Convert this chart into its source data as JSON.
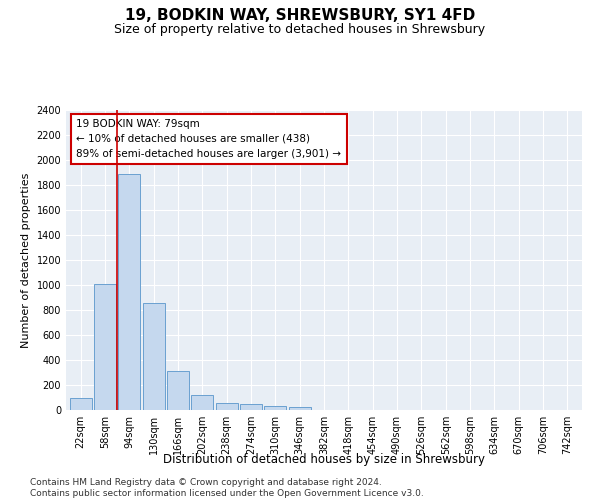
{
  "title1": "19, BODKIN WAY, SHREWSBURY, SY1 4FD",
  "title2": "Size of property relative to detached houses in Shrewsbury",
  "xlabel": "Distribution of detached houses by size in Shrewsbury",
  "ylabel": "Number of detached properties",
  "categories": [
    "22sqm",
    "58sqm",
    "94sqm",
    "130sqm",
    "166sqm",
    "202sqm",
    "238sqm",
    "274sqm",
    "310sqm",
    "346sqm",
    "382sqm",
    "418sqm",
    "454sqm",
    "490sqm",
    "526sqm",
    "562sqm",
    "598sqm",
    "634sqm",
    "670sqm",
    "706sqm",
    "742sqm"
  ],
  "bar_values": [
    100,
    1010,
    1890,
    860,
    315,
    120,
    60,
    50,
    35,
    22,
    0,
    0,
    0,
    0,
    0,
    0,
    0,
    0,
    0,
    0,
    0
  ],
  "bar_color": "#c5d8ee",
  "bar_edge_color": "#6aA0d0",
  "vline_color": "#cc0000",
  "vline_xindex": 1.5,
  "annotation_text": "19 BODKIN WAY: 79sqm\n← 10% of detached houses are smaller (438)\n89% of semi-detached houses are larger (3,901) →",
  "annotation_box_color": "#cc0000",
  "ylim": [
    0,
    2400
  ],
  "yticks": [
    0,
    200,
    400,
    600,
    800,
    1000,
    1200,
    1400,
    1600,
    1800,
    2000,
    2200,
    2400
  ],
  "bg_color": "#e8eef5",
  "footer": "Contains HM Land Registry data © Crown copyright and database right 2024.\nContains public sector information licensed under the Open Government Licence v3.0.",
  "title1_fontsize": 11,
  "title2_fontsize": 9,
  "xlabel_fontsize": 8.5,
  "ylabel_fontsize": 8,
  "tick_fontsize": 7,
  "annotation_fontsize": 7.5,
  "footer_fontsize": 6.5
}
